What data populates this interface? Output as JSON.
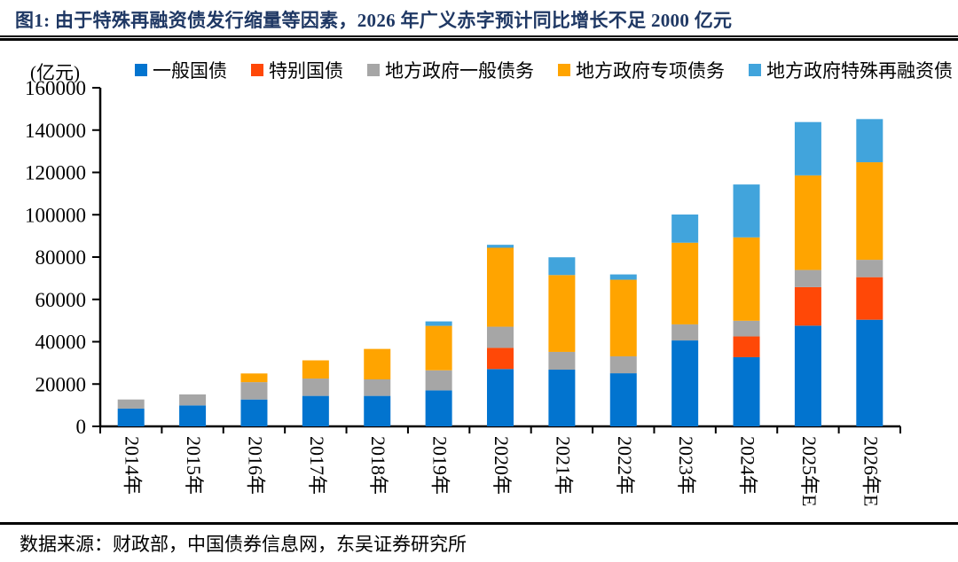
{
  "header": {
    "title": "图1:  由于特殊再融资债发行缩量等因素，2026 年广义赤字预计同比增长不足 2000 亿元"
  },
  "chart": {
    "unit_label": "(亿元)"
  },
  "chart_data": {
    "type": "bar",
    "stacked": true,
    "title": "",
    "xlabel": "",
    "ylabel": "亿元",
    "ylim": [
      0,
      160000
    ],
    "ytick_step": 20000,
    "grid": false,
    "legend_position": "top",
    "categories": [
      "2014年",
      "2015年",
      "2016年",
      "2017年",
      "2018年",
      "2019年",
      "2020年",
      "2021年",
      "2022年",
      "2023年",
      "2024年",
      "2025年E",
      "2026年E"
    ],
    "series": [
      {
        "name": "一般国债",
        "color": "#0274CF",
        "values": [
          8400,
          9900,
          12700,
          14400,
          14400,
          17000,
          27100,
          26800,
          25100,
          40600,
          32700,
          47600,
          50400
        ]
      },
      {
        "name": "特别国债",
        "color": "#FF4807",
        "values": [
          0,
          0,
          0,
          0,
          0,
          0,
          10000,
          0,
          0,
          0,
          9800,
          18200,
          20100
        ]
      },
      {
        "name": "地方政府一般债务",
        "color": "#A6A6A6",
        "values": [
          4300,
          5200,
          8200,
          8200,
          7800,
          9500,
          10000,
          8400,
          8000,
          7600,
          7400,
          8100,
          8200
        ]
      },
      {
        "name": "地方政府专项债务",
        "color": "#FFA400",
        "values": [
          0,
          0,
          4100,
          8600,
          14400,
          21000,
          37300,
          36300,
          36200,
          38600,
          39400,
          44700,
          46100
        ]
      },
      {
        "name": "地方政府特殊再融资债",
        "color": "#41A4DC",
        "values": [
          0,
          0,
          0,
          0,
          0,
          2100,
          1400,
          8400,
          2500,
          13300,
          25000,
          25200,
          20400
        ]
      }
    ]
  },
  "footer": {
    "source": "数据来源：财政部，中国债券信息网，东吴证券研究所"
  }
}
